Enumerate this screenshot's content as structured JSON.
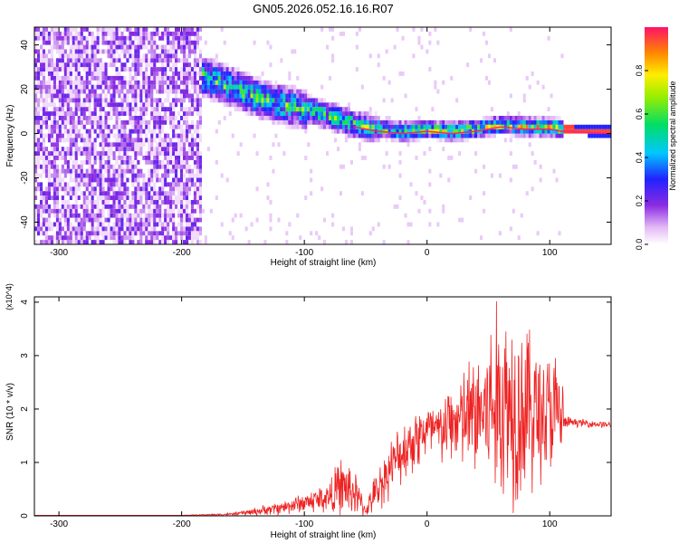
{
  "figure": {
    "title": "GN05.2026.052.16.16.R07"
  },
  "chart_data": [
    {
      "type": "heatmap",
      "xlabel": "Height of straight line (km)",
      "ylabel": "Frequency (Hz)",
      "xlim": [
        -320,
        150
      ],
      "ylim": [
        -50,
        48
      ],
      "x_ticks": [
        -300,
        -200,
        -100,
        0,
        100
      ],
      "y_ticks": [
        -40,
        -20,
        0,
        20,
        40
      ],
      "colorbar": {
        "label": "Normalized spectral amplitude",
        "range": [
          0,
          1
        ],
        "ticks": [
          "0.0",
          "0.2",
          "0.4",
          "0.6",
          "0.8"
        ]
      },
      "ridge": {
        "x": [
          -185,
          -160,
          -140,
          -120,
          -100,
          -80,
          -60,
          -40,
          -20,
          0,
          20,
          40,
          60,
          80,
          100,
          110,
          150
        ],
        "y": [
          25,
          20,
          15,
          12,
          10,
          7,
          3,
          1,
          0,
          1,
          0,
          1,
          3,
          2,
          2,
          1,
          0
        ]
      },
      "noise_region_x": [
        -320,
        -185
      ]
    },
    {
      "type": "line",
      "xlabel": "Height of straight line (km)",
      "ylabel": "SNR (10 * v/v)",
      "y_multiplier": "(x10^4)",
      "xlim": [
        -320,
        150
      ],
      "ylim": [
        0,
        4.1
      ],
      "x_ticks": [
        -300,
        -200,
        -100,
        0,
        100
      ],
      "y_ticks": [
        0,
        1,
        2,
        3,
        4
      ],
      "series": [
        {
          "color": "#ee2222",
          "x": [
            -320,
            -200,
            -160,
            -140,
            -120,
            -100,
            -80,
            -70,
            -60,
            -50,
            -40,
            -30,
            -20,
            -10,
            0,
            10,
            20,
            30,
            40,
            50,
            60,
            70,
            80,
            90,
            100,
            110,
            112,
            120,
            150
          ],
          "y": [
            0.01,
            0.01,
            0.03,
            0.08,
            0.15,
            0.25,
            0.35,
            0.55,
            0.45,
            0.1,
            0.5,
            0.9,
            1.2,
            1.45,
            1.6,
            1.55,
            1.75,
            1.8,
            1.9,
            2.0,
            2.1,
            2.15,
            2.0,
            1.95,
            1.9,
            1.85,
            1.75,
            1.75,
            1.7
          ],
          "spread": [
            0,
            0,
            0.02,
            0.06,
            0.1,
            0.15,
            0.25,
            0.45,
            0.4,
            0.08,
            0.35,
            0.4,
            0.45,
            0.5,
            0.45,
            0.5,
            0.6,
            0.8,
            1.0,
            1.3,
            1.6,
            1.6,
            1.4,
            1.1,
            1.0,
            0.9,
            0.1,
            0.06,
            0.05
          ]
        }
      ]
    }
  ]
}
